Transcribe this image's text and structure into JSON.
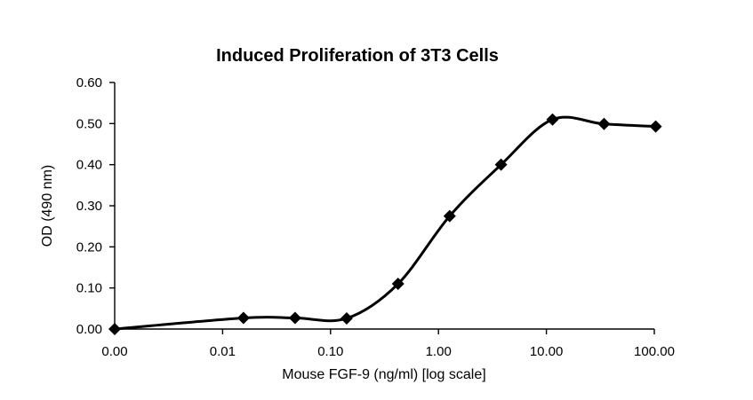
{
  "chart_data": {
    "type": "line",
    "title": "Induced Proliferation of 3T3 Cells",
    "xlabel": "Mouse FGF-9 (ng/ml) [log scale]",
    "ylabel": "OD (490 nm)",
    "x_scale": "log",
    "x_tick_labels": [
      "0.00",
      "0.01",
      "0.10",
      "1.00",
      "10.00",
      "100.00"
    ],
    "y_tick_labels": [
      "0.00",
      "0.10",
      "0.20",
      "0.30",
      "0.40",
      "0.50",
      "0.60"
    ],
    "ylim": [
      0,
      0.6
    ],
    "grid": false,
    "legend": "none",
    "line_color": "#000000",
    "marker": "diamond",
    "series": [
      {
        "x": [
          0.001,
          0.0156,
          0.0469,
          0.141,
          0.422,
          1.27,
          3.8,
          11.4,
          34.2,
          103
        ],
        "values": [
          0.0,
          0.027,
          0.027,
          0.026,
          0.11,
          0.275,
          0.4,
          0.51,
          0.499,
          0.493
        ]
      }
    ]
  }
}
